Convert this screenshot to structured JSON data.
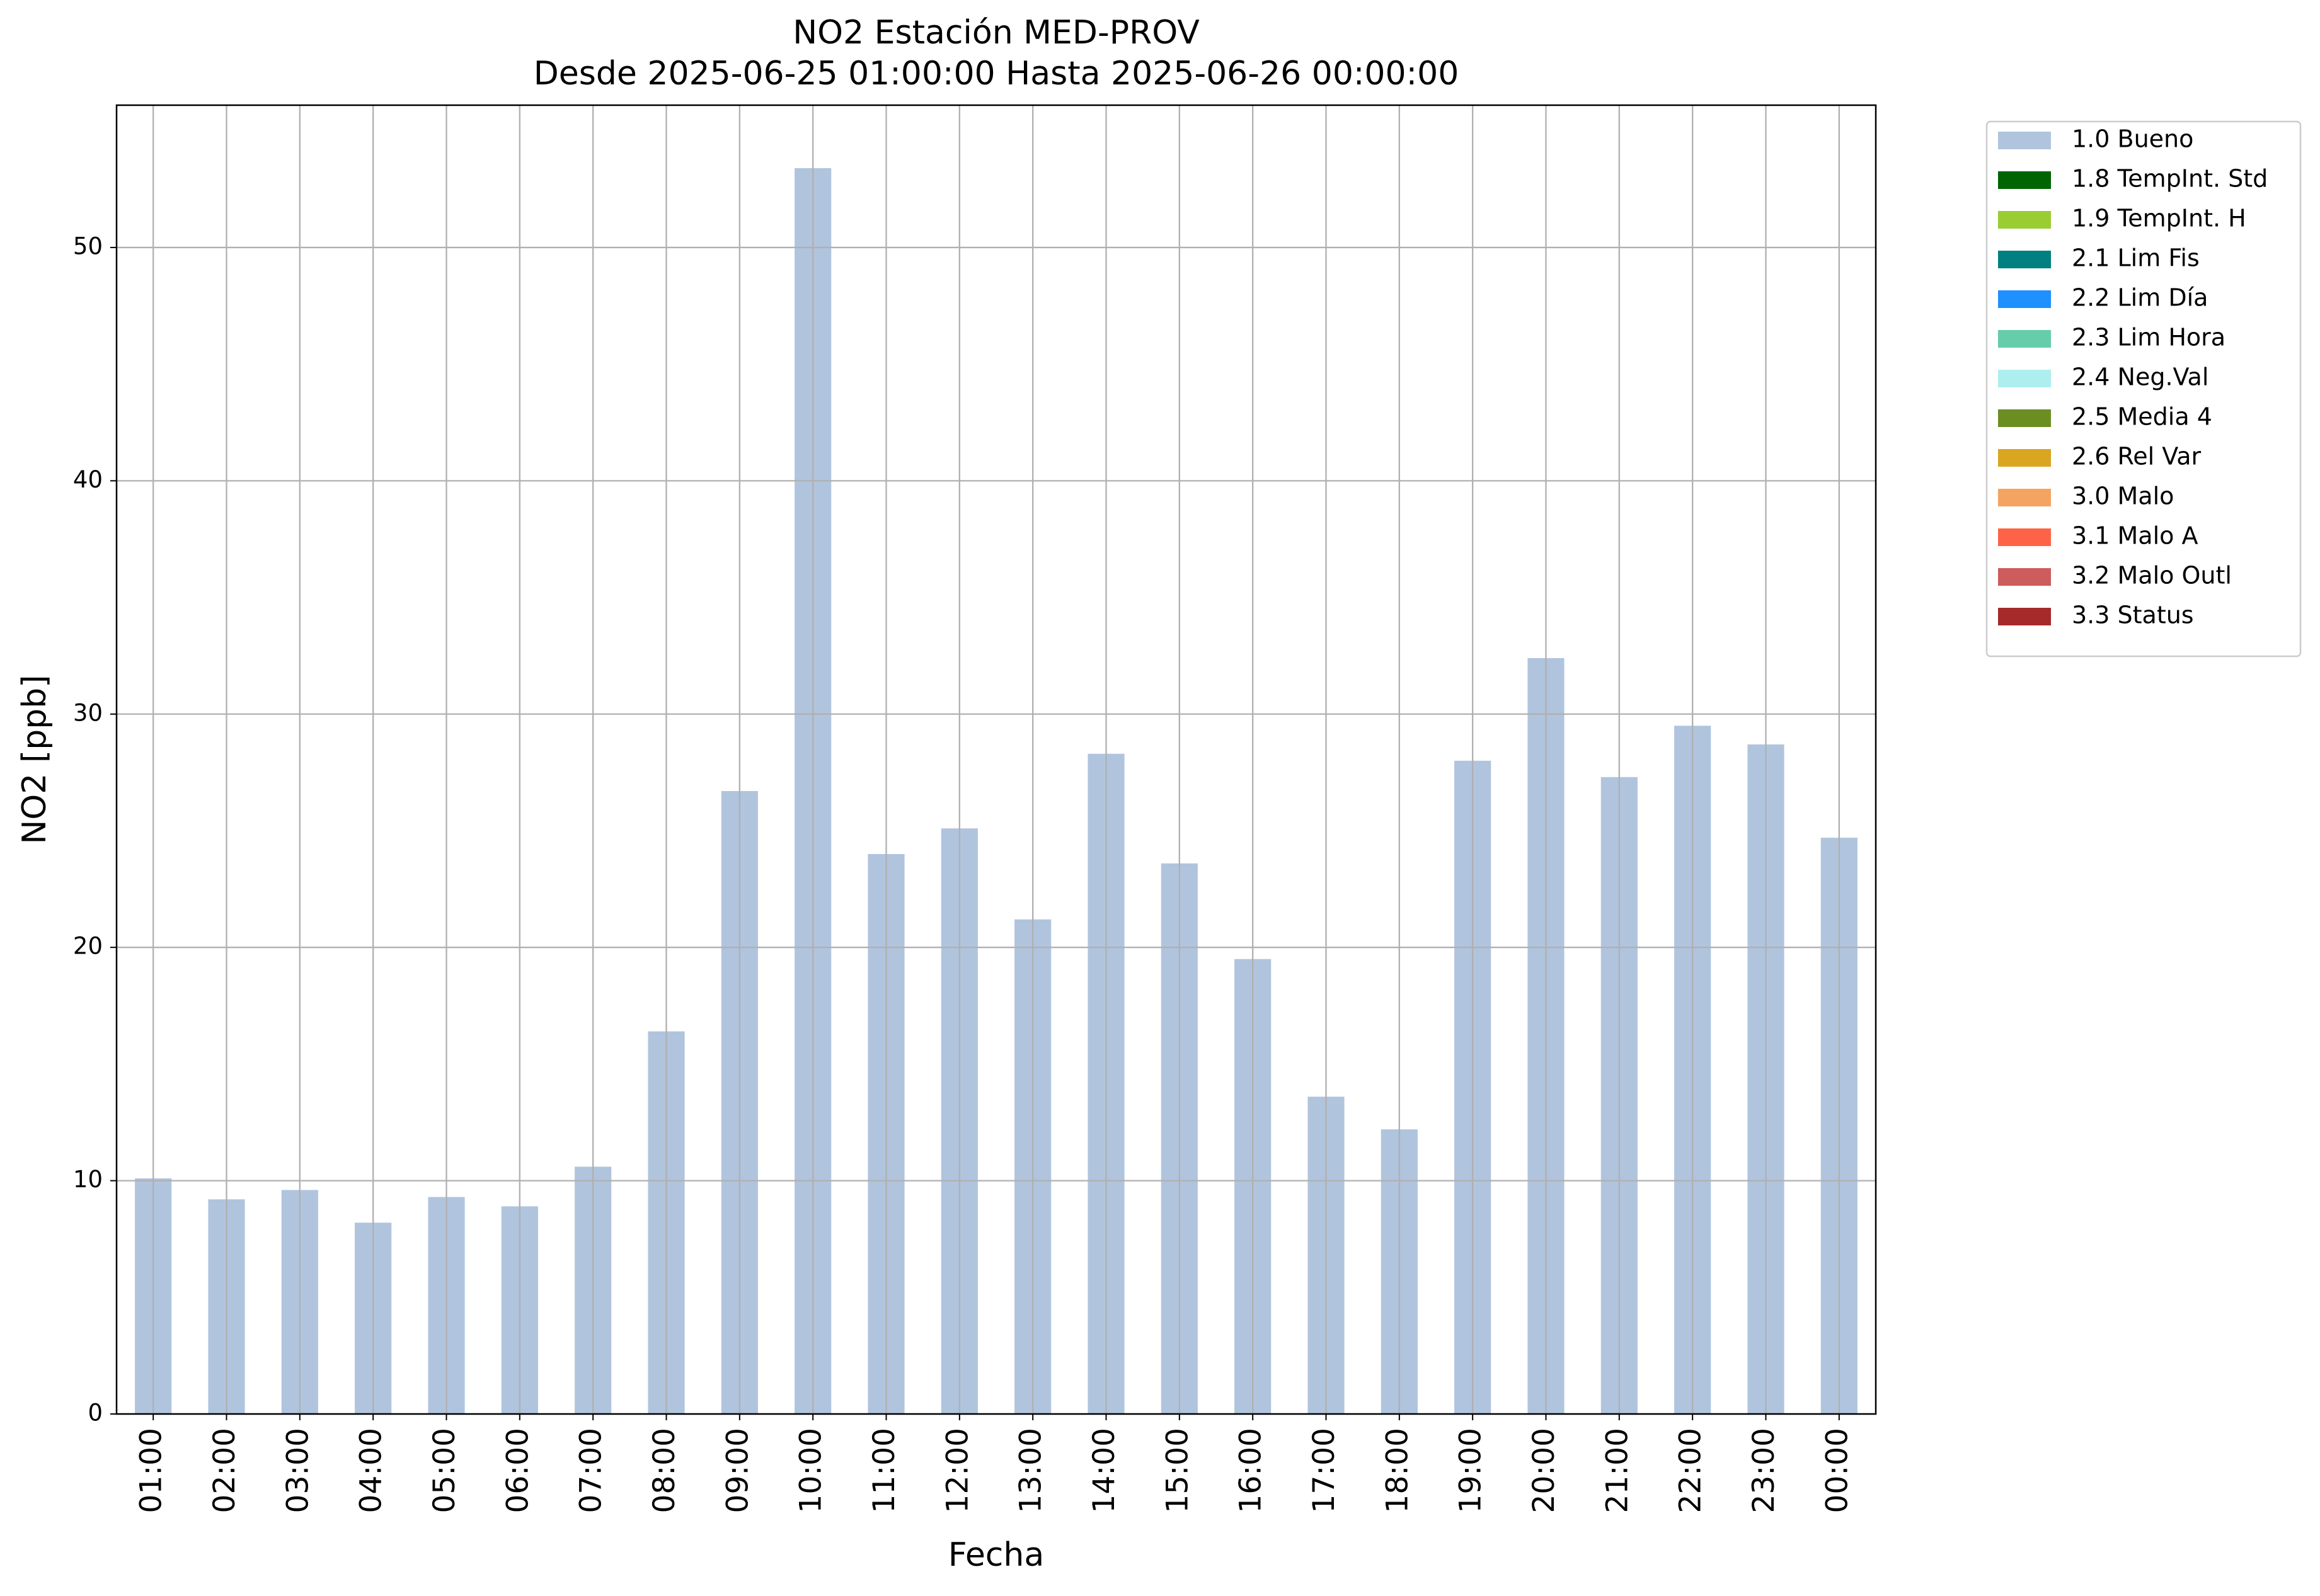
{
  "chart_data": {
    "type": "stacked_bar",
    "title": "NO2 Estación MED-PROV",
    "subtitle": "Desde 2025-06-25 01:00:00 Hasta 2025-06-26 00:00:00",
    "x_label": "Fecha",
    "y_label": "NO2 [ppb]",
    "categories": [
      "01:00",
      "02:00",
      "03:00",
      "04:00",
      "05:00",
      "06:00",
      "07:00",
      "08:00",
      "09:00",
      "10:00",
      "11:00",
      "12:00",
      "13:00",
      "14:00",
      "15:00",
      "16:00",
      "17:00",
      "18:00",
      "19:00",
      "20:00",
      "21:00",
      "22:00",
      "23:00",
      "00:00"
    ],
    "series": [
      {
        "name": "1.0 Bueno",
        "color": "#b0c4de",
        "values": [
          10.1,
          9.2,
          9.6,
          8.2,
          9.3,
          8.9,
          10.6,
          16.4,
          26.7,
          53.4,
          24.0,
          25.1,
          21.2,
          28.3,
          23.6,
          19.5,
          13.6,
          12.2,
          28.0,
          32.4,
          27.3,
          29.5,
          28.7,
          24.7
        ]
      },
      {
        "name": "1.8 TempInt. Std",
        "color": "#006400",
        "values": [
          null,
          null,
          null,
          null,
          null,
          null,
          null,
          null,
          null,
          null,
          null,
          null,
          null,
          null,
          null,
          null,
          null,
          null,
          null,
          null,
          null,
          null,
          null,
          null
        ]
      },
      {
        "name": "1.9 TempInt. H",
        "color": "#9acd32",
        "values": [
          null,
          null,
          null,
          null,
          null,
          null,
          null,
          null,
          null,
          null,
          null,
          null,
          null,
          null,
          null,
          null,
          null,
          null,
          null,
          null,
          null,
          null,
          null,
          null
        ]
      },
      {
        "name": "2.1 Lim Fis",
        "color": "#008080",
        "values": [
          null,
          null,
          null,
          null,
          null,
          null,
          null,
          null,
          null,
          null,
          null,
          null,
          null,
          null,
          null,
          null,
          null,
          null,
          null,
          null,
          null,
          null,
          null,
          null
        ]
      },
      {
        "name": "2.2 Lim Día",
        "color": "#1e90ff",
        "values": [
          null,
          null,
          null,
          null,
          null,
          null,
          null,
          null,
          null,
          null,
          null,
          null,
          null,
          null,
          null,
          null,
          null,
          null,
          null,
          null,
          null,
          null,
          null,
          null
        ]
      },
      {
        "name": "2.3 Lim Hora",
        "color": "#66cdaa",
        "values": [
          null,
          null,
          null,
          null,
          null,
          null,
          null,
          null,
          null,
          null,
          null,
          null,
          null,
          null,
          null,
          null,
          null,
          null,
          null,
          null,
          null,
          null,
          null,
          null
        ]
      },
      {
        "name": "2.4 Neg.Val",
        "color": "#afeeee",
        "values": [
          null,
          null,
          null,
          null,
          null,
          null,
          null,
          null,
          null,
          null,
          null,
          null,
          null,
          null,
          null,
          null,
          null,
          null,
          null,
          null,
          null,
          null,
          null,
          null
        ]
      },
      {
        "name": "2.5 Media 4",
        "color": "#6b8e23",
        "values": [
          null,
          null,
          null,
          null,
          null,
          null,
          null,
          null,
          null,
          null,
          null,
          null,
          null,
          null,
          null,
          null,
          null,
          null,
          null,
          null,
          null,
          null,
          null,
          null
        ]
      },
      {
        "name": "2.6 Rel Var",
        "color": "#daa520",
        "values": [
          null,
          null,
          null,
          null,
          null,
          null,
          null,
          null,
          null,
          null,
          null,
          null,
          null,
          null,
          null,
          null,
          null,
          null,
          null,
          null,
          null,
          null,
          null,
          null
        ]
      },
      {
        "name": "3.0 Malo",
        "color": "#f4a460",
        "values": [
          null,
          null,
          null,
          null,
          null,
          null,
          null,
          null,
          null,
          null,
          null,
          null,
          null,
          null,
          null,
          null,
          null,
          null,
          null,
          null,
          null,
          null,
          null,
          null
        ]
      },
      {
        "name": "3.1 Malo A",
        "color": "#ff6347",
        "values": [
          null,
          null,
          null,
          null,
          null,
          null,
          null,
          null,
          null,
          null,
          null,
          null,
          null,
          null,
          null,
          null,
          null,
          null,
          null,
          null,
          null,
          null,
          null,
          null
        ]
      },
      {
        "name": "3.2 Malo Outl",
        "color": "#cd5c5c",
        "values": [
          null,
          null,
          null,
          null,
          null,
          null,
          null,
          null,
          null,
          null,
          null,
          null,
          null,
          null,
          null,
          null,
          null,
          null,
          null,
          null,
          null,
          null,
          null,
          null
        ]
      },
      {
        "name": "3.3 Status",
        "color": "#a52a2a",
        "values": [
          null,
          null,
          null,
          null,
          null,
          null,
          null,
          null,
          null,
          null,
          null,
          null,
          null,
          null,
          null,
          null,
          null,
          null,
          null,
          null,
          null,
          null,
          null,
          null
        ]
      }
    ],
    "ylim": [
      0,
      56.1
    ],
    "yticks": [
      0,
      10,
      20,
      30,
      40,
      50
    ],
    "grid": true,
    "legend": "outside-right"
  }
}
